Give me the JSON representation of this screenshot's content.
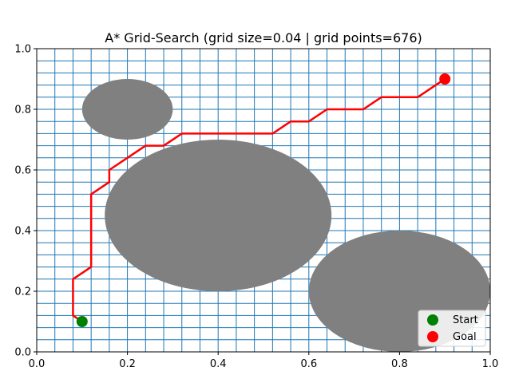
{
  "chart_data": {
    "type": "scatter",
    "title": "A* Grid-Search (grid size=0.04 | grid points=676)",
    "xlabel": "",
    "ylabel": "",
    "xlim": [
      0,
      1
    ],
    "ylim": [
      0,
      1
    ],
    "xticks": [
      "0.0",
      "0.2",
      "0.4",
      "0.6",
      "0.8",
      "1.0"
    ],
    "yticks": [
      "0.0",
      "0.2",
      "0.4",
      "0.6",
      "0.8",
      "1.0"
    ],
    "grid": {
      "spacing": 0.04,
      "color": "#1f77b4"
    },
    "obstacles": [
      {
        "cx": 0.2,
        "cy": 0.8,
        "radius": 0.1
      },
      {
        "cx": 0.4,
        "cy": 0.45,
        "radius": 0.25
      },
      {
        "cx": 0.8,
        "cy": 0.2,
        "radius": 0.2
      }
    ],
    "obstacle_color": "#808080",
    "path": {
      "color": "#ff0000",
      "points": [
        [
          0.1,
          0.1
        ],
        [
          0.08,
          0.12
        ],
        [
          0.08,
          0.24
        ],
        [
          0.12,
          0.28
        ],
        [
          0.12,
          0.52
        ],
        [
          0.16,
          0.56
        ],
        [
          0.16,
          0.6
        ],
        [
          0.2,
          0.64
        ],
        [
          0.24,
          0.68
        ],
        [
          0.28,
          0.68
        ],
        [
          0.32,
          0.72
        ],
        [
          0.36,
          0.72
        ],
        [
          0.4,
          0.72
        ],
        [
          0.44,
          0.72
        ],
        [
          0.48,
          0.72
        ],
        [
          0.52,
          0.72
        ],
        [
          0.56,
          0.76
        ],
        [
          0.6,
          0.76
        ],
        [
          0.64,
          0.8
        ],
        [
          0.68,
          0.8
        ],
        [
          0.72,
          0.8
        ],
        [
          0.76,
          0.84
        ],
        [
          0.8,
          0.84
        ],
        [
          0.84,
          0.84
        ],
        [
          0.88,
          0.88
        ],
        [
          0.9,
          0.9
        ]
      ]
    },
    "series": [
      {
        "name": "Start",
        "x": [
          0.1
        ],
        "y": [
          0.1
        ],
        "color": "#008000"
      },
      {
        "name": "Goal",
        "x": [
          0.9
        ],
        "y": [
          0.9
        ],
        "color": "#ff0000"
      }
    ],
    "legend": "lower-right"
  }
}
